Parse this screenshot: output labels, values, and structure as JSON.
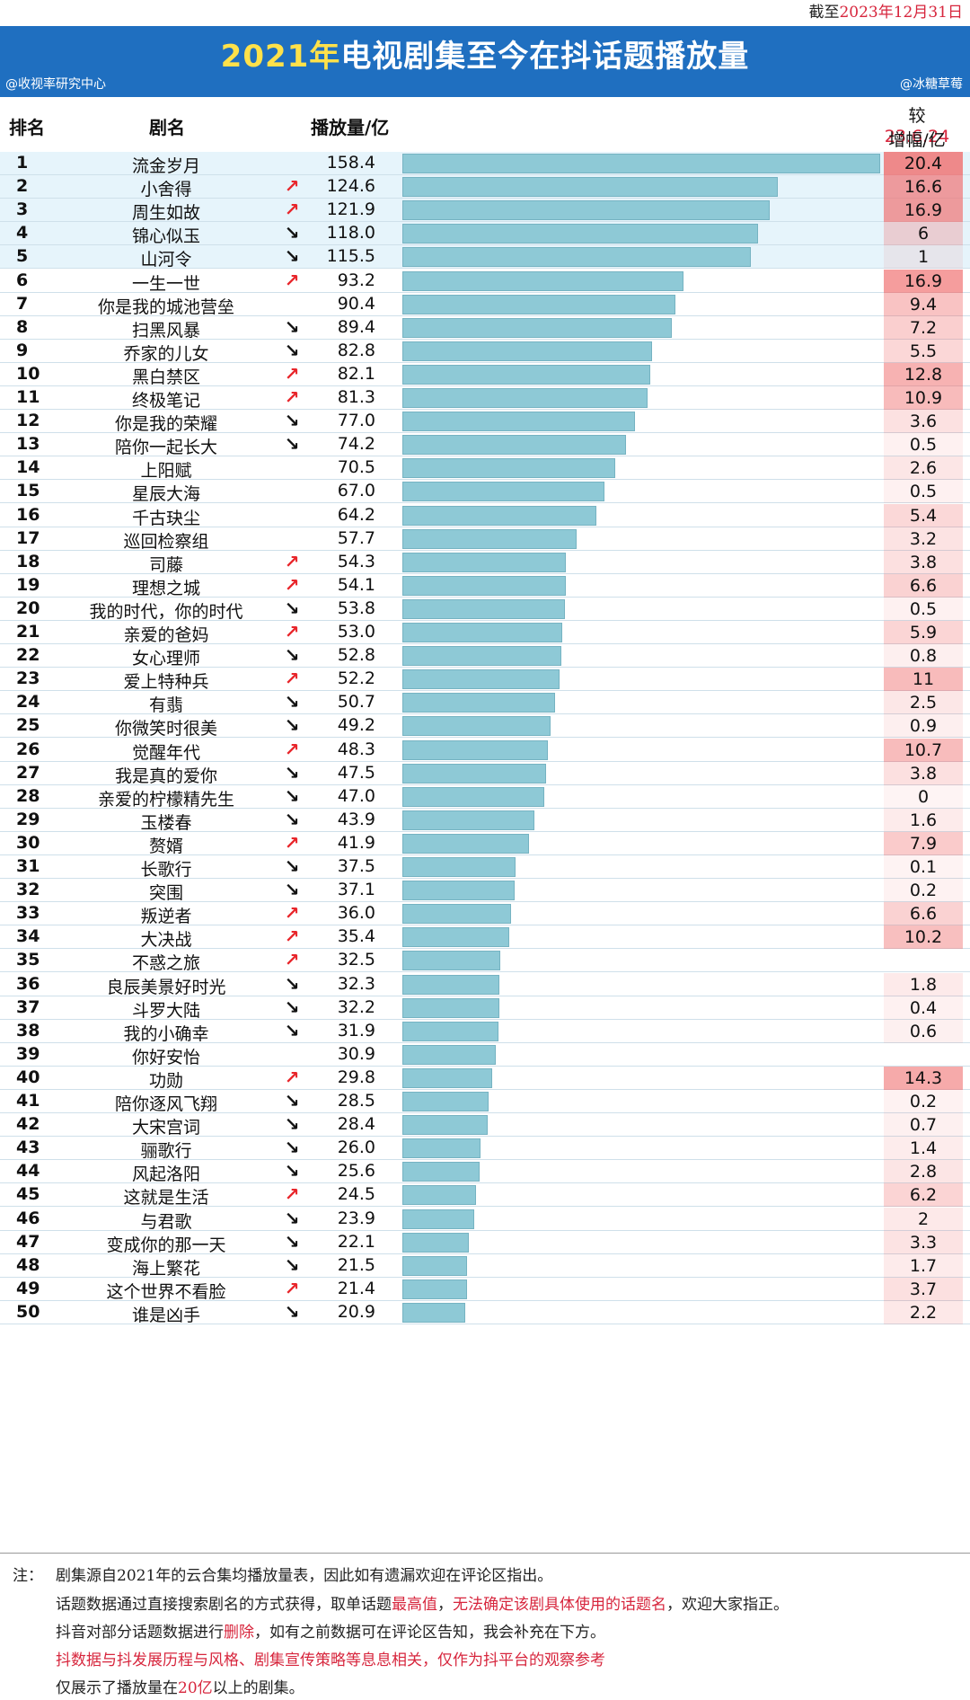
{
  "as_of": {
    "prefix": "截至",
    "date": "2023年12月31日"
  },
  "header": {
    "title_year": "2021年",
    "title_rest": "电视剧集至今在抖话题播放量",
    "source_left": "@收视率研究中心",
    "source_right": "@冰糖草莓"
  },
  "columns": {
    "rank": "排名",
    "name": "剧名",
    "views": "播放量/亿",
    "increase_prefix": "较",
    "increase_date": "23.6.24",
    "increase_label": "增幅/亿"
  },
  "colors": {
    "bar": "#8ec9d6",
    "increase_max": "#f08080",
    "up": "#e8262b",
    "down": "#111111"
  },
  "chart_data": {
    "type": "bar",
    "title": "2021年电视剧集至今在抖话题播放量",
    "ylabel": "播放量/亿",
    "xmax": 158.4,
    "rows": [
      {
        "rank": "1",
        "name": "流金岁月",
        "trend": "",
        "value": 158.4,
        "increase": "20.4"
      },
      {
        "rank": "2",
        "name": "小舍得",
        "trend": "up",
        "value": 124.6,
        "increase": "16.6"
      },
      {
        "rank": "3",
        "name": "周生如故",
        "trend": "up",
        "value": 121.9,
        "increase": "16.9"
      },
      {
        "rank": "4",
        "name": "锦心似玉",
        "trend": "down",
        "value": 118.0,
        "increase": "6"
      },
      {
        "rank": "5",
        "name": "山河令",
        "trend": "down",
        "value": 115.5,
        "increase": "1"
      },
      {
        "rank": "6",
        "name": "一生一世",
        "trend": "up",
        "value": 93.2,
        "increase": "16.9"
      },
      {
        "rank": "7",
        "name": "你是我的城池营垒",
        "trend": "",
        "value": 90.4,
        "increase": "9.4"
      },
      {
        "rank": "8",
        "name": "扫黑风暴",
        "trend": "down",
        "value": 89.4,
        "increase": "7.2"
      },
      {
        "rank": "9",
        "name": "乔家的儿女",
        "trend": "down",
        "value": 82.8,
        "increase": "5.5"
      },
      {
        "rank": "10",
        "name": "黑白禁区",
        "trend": "up",
        "value": 82.1,
        "increase": "12.8"
      },
      {
        "rank": "11",
        "name": "终极笔记",
        "trend": "up",
        "value": 81.3,
        "increase": "10.9"
      },
      {
        "rank": "12",
        "name": "你是我的荣耀",
        "trend": "down",
        "value": 77.0,
        "increase": "3.6"
      },
      {
        "rank": "13",
        "name": "陪你一起长大",
        "trend": "down",
        "value": 74.2,
        "increase": "0.5"
      },
      {
        "rank": "14",
        "name": "上阳赋",
        "trend": "",
        "value": 70.5,
        "increase": "2.6"
      },
      {
        "rank": "15",
        "name": "星辰大海",
        "trend": "",
        "value": 67.0,
        "increase": "0.5"
      },
      {
        "rank": "16",
        "name": "千古玦尘",
        "trend": "",
        "value": 64.2,
        "increase": "5.4"
      },
      {
        "rank": "17",
        "name": "巡回检察组",
        "trend": "",
        "value": 57.7,
        "increase": "3.2"
      },
      {
        "rank": "18",
        "name": "司藤",
        "trend": "up",
        "value": 54.3,
        "increase": "3.8"
      },
      {
        "rank": "19",
        "name": "理想之城",
        "trend": "up",
        "value": 54.1,
        "increase": "6.6"
      },
      {
        "rank": "20",
        "name": "我的时代，你的时代",
        "trend": "down",
        "value": 53.8,
        "increase": "0.5"
      },
      {
        "rank": "21",
        "name": "亲爱的爸妈",
        "trend": "up",
        "value": 53.0,
        "increase": "5.9"
      },
      {
        "rank": "22",
        "name": "女心理师",
        "trend": "down",
        "value": 52.8,
        "increase": "0.8"
      },
      {
        "rank": "23",
        "name": "爱上特种兵",
        "trend": "up",
        "value": 52.2,
        "increase": "11"
      },
      {
        "rank": "24",
        "name": "有翡",
        "trend": "down",
        "value": 50.7,
        "increase": "2.5"
      },
      {
        "rank": "25",
        "name": "你微笑时很美",
        "trend": "down",
        "value": 49.2,
        "increase": "0.9"
      },
      {
        "rank": "26",
        "name": "觉醒年代",
        "trend": "up",
        "value": 48.3,
        "increase": "10.7"
      },
      {
        "rank": "27",
        "name": "我是真的爱你",
        "trend": "down",
        "value": 47.5,
        "increase": "3.8"
      },
      {
        "rank": "28",
        "name": "亲爱的柠檬精先生",
        "trend": "down",
        "value": 47.0,
        "increase": "0"
      },
      {
        "rank": "29",
        "name": "玉楼春",
        "trend": "down",
        "value": 43.9,
        "increase": "1.6"
      },
      {
        "rank": "30",
        "name": "赘婿",
        "trend": "up",
        "value": 41.9,
        "increase": "7.9"
      },
      {
        "rank": "31",
        "name": "长歌行",
        "trend": "down",
        "value": 37.5,
        "increase": "0.1"
      },
      {
        "rank": "32",
        "name": "突围",
        "trend": "down",
        "value": 37.1,
        "increase": "0.2"
      },
      {
        "rank": "33",
        "name": "叛逆者",
        "trend": "up",
        "value": 36.0,
        "increase": "6.6"
      },
      {
        "rank": "34",
        "name": "大决战",
        "trend": "up",
        "value": 35.4,
        "increase": "10.2"
      },
      {
        "rank": "35",
        "name": "不惑之旅",
        "trend": "up",
        "value": 32.5,
        "increase": ""
      },
      {
        "rank": "36",
        "name": "良辰美景好时光",
        "trend": "down",
        "value": 32.3,
        "increase": "1.8"
      },
      {
        "rank": "37",
        "name": "斗罗大陆",
        "trend": "down",
        "value": 32.2,
        "increase": "0.4"
      },
      {
        "rank": "38",
        "name": "我的小确幸",
        "trend": "down",
        "value": 31.9,
        "increase": "0.6"
      },
      {
        "rank": "39",
        "name": "你好安怡",
        "trend": "",
        "value": 30.9,
        "increase": ""
      },
      {
        "rank": "40",
        "name": "功勋",
        "trend": "up",
        "value": 29.8,
        "increase": "14.3"
      },
      {
        "rank": "41",
        "name": "陪你逐风飞翔",
        "trend": "down",
        "value": 28.5,
        "increase": "0.2"
      },
      {
        "rank": "42",
        "name": "大宋宫词",
        "trend": "down",
        "value": 28.4,
        "increase": "0.7"
      },
      {
        "rank": "43",
        "name": "骊歌行",
        "trend": "down",
        "value": 26.0,
        "increase": "1.4"
      },
      {
        "rank": "44",
        "name": "风起洛阳",
        "trend": "down",
        "value": 25.6,
        "increase": "2.8"
      },
      {
        "rank": "45",
        "name": "这就是生活",
        "trend": "up",
        "value": 24.5,
        "increase": "6.2"
      },
      {
        "rank": "46",
        "name": "与君歌",
        "trend": "down",
        "value": 23.9,
        "increase": "2"
      },
      {
        "rank": "47",
        "name": "变成你的那一天",
        "trend": "down",
        "value": 22.1,
        "increase": "3.3"
      },
      {
        "rank": "48",
        "name": "海上繁花",
        "trend": "down",
        "value": 21.5,
        "increase": "1.7"
      },
      {
        "rank": "49",
        "name": "这个世界不看脸",
        "trend": "up",
        "value": 21.4,
        "increase": "3.7"
      },
      {
        "rank": "50",
        "name": "谁是凶手",
        "trend": "down",
        "value": 20.9,
        "increase": "2.2"
      }
    ]
  },
  "notes": {
    "label": "注：",
    "line1": "剧集源自2021年的云合集均播放量表，因此如有遗漏欢迎在评论区指出。",
    "line2_a": "话题数据通过直接搜索剧名的方式获得，取单话题",
    "line2_b": "最高值",
    "line2_c": "，",
    "line2_d": "无法确定该剧具体使用的话题名",
    "line2_e": "，欢迎大家指正。",
    "line3_a": "抖音对部分话题数据进行",
    "line3_b": "删除",
    "line3_c": "，如有之前数据可在评论区告知，我会补充在下方。",
    "line4_a": "抖数据与",
    "line4_b": "抖发展历程与风格、剧集宣传策略",
    "line4_c": "等息息相关，仅作为抖平台的观察参考",
    "line5_a": "仅展示了播放量在",
    "line5_b": "20亿",
    "line5_c": "以上的剧集。"
  }
}
